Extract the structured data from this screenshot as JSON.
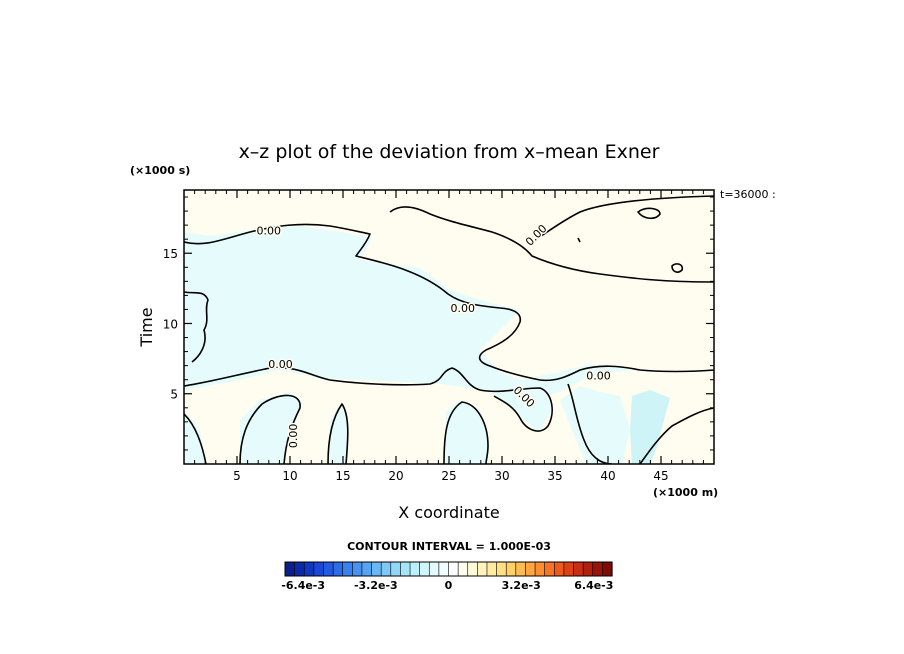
{
  "chart_data": {
    "type": "contour",
    "title": "x–z plot of the deviation from x–mean Exner",
    "xlabel": "X coordinate",
    "ylabel": "Time",
    "x_unit": "(×1000 m)",
    "y_unit": "(×1000 s)",
    "time_label": "t=36000 :",
    "xlim": [
      0,
      50
    ],
    "ylim": [
      0,
      19.5
    ],
    "x_ticks": [
      5,
      10,
      15,
      20,
      25,
      30,
      35,
      40,
      45
    ],
    "y_ticks": [
      5,
      10,
      15
    ],
    "contour_interval_text": "CONTOUR INTERVAL = 1.000E-03",
    "contour_labels": [
      {
        "text": "0.00",
        "x": 8,
        "y": 16.6,
        "rot": 0
      },
      {
        "text": "0.00",
        "x": 26.3,
        "y": 11.1,
        "rot": 0
      },
      {
        "text": "0.00",
        "x": 9.1,
        "y": 7.1,
        "rot": 0
      },
      {
        "text": "0.00",
        "x": 39.1,
        "y": 6.3,
        "rot": 0
      },
      {
        "text": "0.00",
        "x": 32.1,
        "y": 4.8,
        "rot": 45
      },
      {
        "text": "0.00",
        "x": 33.2,
        "y": 16.3,
        "rot": -45
      },
      {
        "text": "0.00",
        "x": 10.3,
        "y": 2.0,
        "rot": -90
      }
    ],
    "colorbar": {
      "min": -0.0072,
      "max": 0.0072,
      "tick_values": [
        -0.0064,
        -0.0032,
        0,
        0.0032,
        0.0064
      ],
      "tick_labels": [
        "-6.4e-3",
        "-3.2e-3",
        "0",
        "3.2e-3",
        "6.4e-3"
      ],
      "colors": [
        "#0b1e8c",
        "#0d2aa6",
        "#1238c0",
        "#1a48d4",
        "#235ae0",
        "#2d6ce8",
        "#3a80ee",
        "#4892f2",
        "#58a4f4",
        "#6ab6f6",
        "#7ec8f6",
        "#92d8f6",
        "#a6e4f8",
        "#bcf0fa",
        "#d0f6fb",
        "#e2fafc",
        "#f0fdfd",
        "#ffffff",
        "#fffff0",
        "#fffbd8",
        "#fff4bc",
        "#ffeca0",
        "#ffe084",
        "#ffd06a",
        "#ffbc54",
        "#ffa640",
        "#ff8e30",
        "#f87424",
        "#ec5a1c",
        "#dc4216",
        "#c82e12",
        "#b0200e",
        "#981408",
        "#800a04"
      ]
    }
  }
}
